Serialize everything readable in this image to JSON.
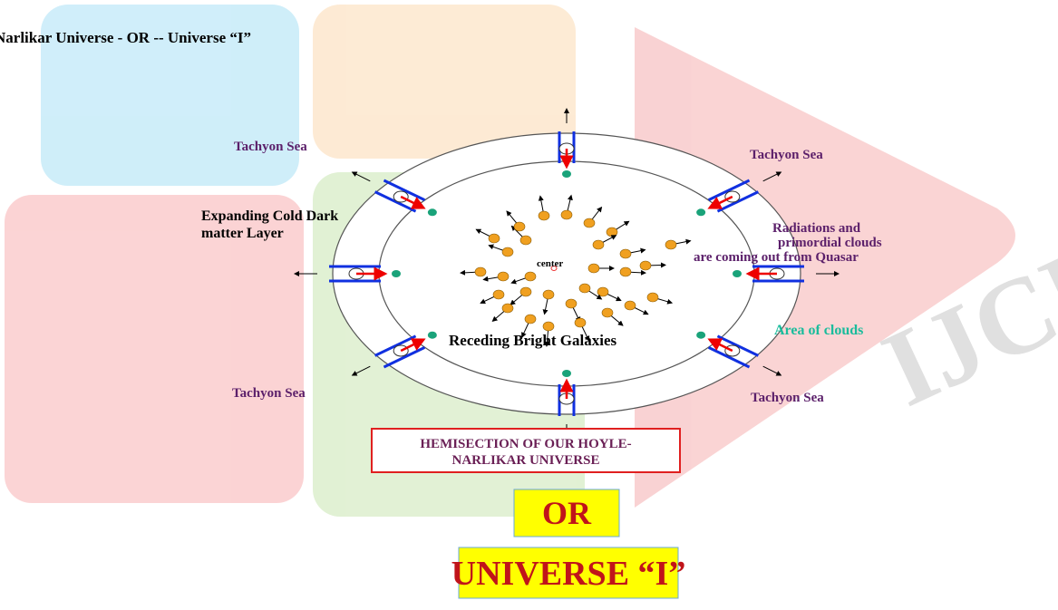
{
  "header": {
    "title": "Narlikar Universe  - OR  -- Universe “I”"
  },
  "watermark": "IJCRT",
  "diagram": {
    "labels": {
      "tachyon_top_left": "Tachyon Sea",
      "tachyon_top_right": "Tachyon Sea",
      "tachyon_bottom_left": "Tachyon Sea",
      "tachyon_bottom_right": "Tachyon Sea",
      "dark_matter": [
        "Expanding Cold Dark",
        "matter Layer"
      ],
      "quasar": [
        "Radiations and",
        "primordial clouds",
        "are coming out from Quasar"
      ],
      "center": "center",
      "clouds": "Area of clouds",
      "galaxies": "Receding Bright Galaxies"
    }
  },
  "caption": {
    "lines": [
      "HEMISECTION OF OUR  HOYLE-",
      "NARLIKAR UNIVERSE"
    ]
  },
  "or_box": "OR",
  "universe_box": "UNIVERSE “I”"
}
